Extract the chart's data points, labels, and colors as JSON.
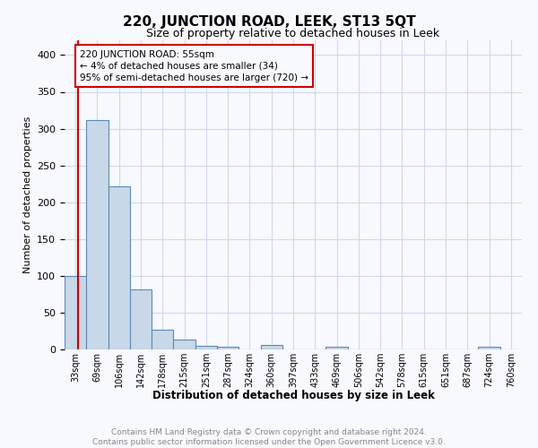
{
  "title": "220, JUNCTION ROAD, LEEK, ST13 5QT",
  "subtitle": "Size of property relative to detached houses in Leek",
  "xlabel": "Distribution of detached houses by size in Leek",
  "ylabel": "Number of detached properties",
  "bin_labels": [
    "33sqm",
    "69sqm",
    "106sqm",
    "142sqm",
    "178sqm",
    "215sqm",
    "251sqm",
    "287sqm",
    "324sqm",
    "360sqm",
    "397sqm",
    "433sqm",
    "469sqm",
    "506sqm",
    "542sqm",
    "578sqm",
    "615sqm",
    "651sqm",
    "687sqm",
    "724sqm",
    "760sqm"
  ],
  "bar_heights": [
    100,
    312,
    222,
    82,
    27,
    14,
    5,
    4,
    0,
    6,
    0,
    0,
    4,
    0,
    0,
    0,
    0,
    0,
    0,
    4,
    0
  ],
  "bar_color": "#c8d8e8",
  "bar_edgecolor": "#5a8ab5",
  "grid_color": "#d0d8e8",
  "annotation_text": "220 JUNCTION ROAD: 55sqm\n← 4% of detached houses are smaller (34)\n95% of semi-detached houses are larger (720) →",
  "annotation_box_edgecolor": "#cc0000",
  "vline_color": "#cc0000",
  "ylim": [
    0,
    420
  ],
  "yticks": [
    0,
    50,
    100,
    150,
    200,
    250,
    300,
    350,
    400
  ],
  "footer_text": "Contains HM Land Registry data © Crown copyright and database right 2024.\nContains public sector information licensed under the Open Government Licence v3.0.",
  "bg_color": "#f8f8ff",
  "title_fontsize": 11,
  "subtitle_fontsize": 9,
  "ylabel_fontsize": 8,
  "xlabel_fontsize": 8.5,
  "tick_fontsize": 7,
  "annot_fontsize": 7.5,
  "footer_fontsize": 6.5
}
